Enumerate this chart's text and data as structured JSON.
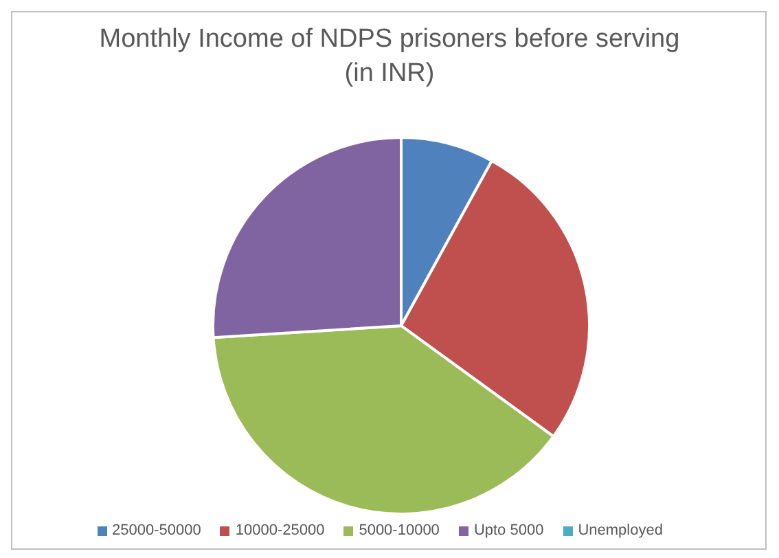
{
  "chart_data": {
    "type": "pie",
    "title": "Monthly Income of NDPS prisoners before serving (in INR)",
    "categories": [
      "25000-50000",
      "10000-25000",
      "5000-10000",
      "Upto 5000",
      "Unemployed"
    ],
    "values": [
      8,
      27,
      39,
      26,
      0
    ],
    "colors": [
      "#4f81bd",
      "#c0504d",
      "#9bbb59",
      "#8064a2",
      "#4bacc6"
    ],
    "legend": "bottom"
  }
}
